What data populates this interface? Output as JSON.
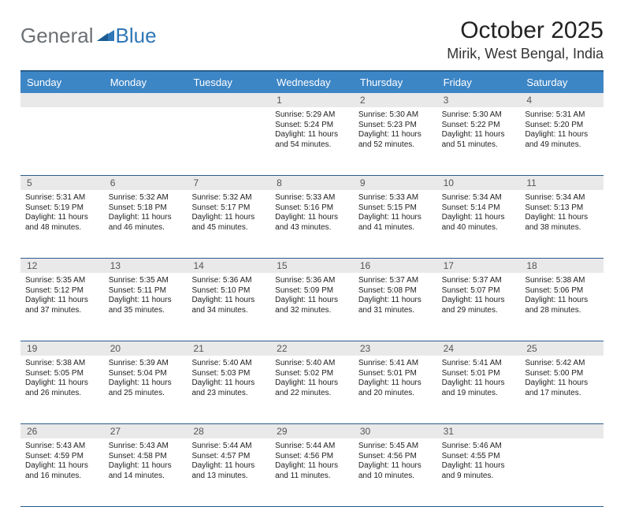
{
  "brand": {
    "general": "General",
    "blue": "Blue"
  },
  "title": "October 2025",
  "location": "Mirik, West Bengal, India",
  "colors": {
    "header_bg": "#3d86c6",
    "header_text": "#ffffff",
    "daynum_bg": "#e9e9e9",
    "daynum_text": "#555555",
    "rule": "#2a5d8a",
    "logo_general": "#6c7074",
    "logo_blue": "#2f77b7",
    "body_text": "#1a1a1a"
  },
  "fonts": {
    "title_pt": 30,
    "location_pt": 18,
    "dayhead_pt": 13,
    "daynum_pt": 12,
    "cell_pt": 10
  },
  "days_of_week": [
    "Sunday",
    "Monday",
    "Tuesday",
    "Wednesday",
    "Thursday",
    "Friday",
    "Saturday"
  ],
  "weeks": [
    [
      {
        "n": "",
        "sunrise": "",
        "sunset": "",
        "daylight": ""
      },
      {
        "n": "",
        "sunrise": "",
        "sunset": "",
        "daylight": ""
      },
      {
        "n": "",
        "sunrise": "",
        "sunset": "",
        "daylight": ""
      },
      {
        "n": "1",
        "sunrise": "Sunrise: 5:29 AM",
        "sunset": "Sunset: 5:24 PM",
        "daylight": "Daylight: 11 hours and 54 minutes."
      },
      {
        "n": "2",
        "sunrise": "Sunrise: 5:30 AM",
        "sunset": "Sunset: 5:23 PM",
        "daylight": "Daylight: 11 hours and 52 minutes."
      },
      {
        "n": "3",
        "sunrise": "Sunrise: 5:30 AM",
        "sunset": "Sunset: 5:22 PM",
        "daylight": "Daylight: 11 hours and 51 minutes."
      },
      {
        "n": "4",
        "sunrise": "Sunrise: 5:31 AM",
        "sunset": "Sunset: 5:20 PM",
        "daylight": "Daylight: 11 hours and 49 minutes."
      }
    ],
    [
      {
        "n": "5",
        "sunrise": "Sunrise: 5:31 AM",
        "sunset": "Sunset: 5:19 PM",
        "daylight": "Daylight: 11 hours and 48 minutes."
      },
      {
        "n": "6",
        "sunrise": "Sunrise: 5:32 AM",
        "sunset": "Sunset: 5:18 PM",
        "daylight": "Daylight: 11 hours and 46 minutes."
      },
      {
        "n": "7",
        "sunrise": "Sunrise: 5:32 AM",
        "sunset": "Sunset: 5:17 PM",
        "daylight": "Daylight: 11 hours and 45 minutes."
      },
      {
        "n": "8",
        "sunrise": "Sunrise: 5:33 AM",
        "sunset": "Sunset: 5:16 PM",
        "daylight": "Daylight: 11 hours and 43 minutes."
      },
      {
        "n": "9",
        "sunrise": "Sunrise: 5:33 AM",
        "sunset": "Sunset: 5:15 PM",
        "daylight": "Daylight: 11 hours and 41 minutes."
      },
      {
        "n": "10",
        "sunrise": "Sunrise: 5:34 AM",
        "sunset": "Sunset: 5:14 PM",
        "daylight": "Daylight: 11 hours and 40 minutes."
      },
      {
        "n": "11",
        "sunrise": "Sunrise: 5:34 AM",
        "sunset": "Sunset: 5:13 PM",
        "daylight": "Daylight: 11 hours and 38 minutes."
      }
    ],
    [
      {
        "n": "12",
        "sunrise": "Sunrise: 5:35 AM",
        "sunset": "Sunset: 5:12 PM",
        "daylight": "Daylight: 11 hours and 37 minutes."
      },
      {
        "n": "13",
        "sunrise": "Sunrise: 5:35 AM",
        "sunset": "Sunset: 5:11 PM",
        "daylight": "Daylight: 11 hours and 35 minutes."
      },
      {
        "n": "14",
        "sunrise": "Sunrise: 5:36 AM",
        "sunset": "Sunset: 5:10 PM",
        "daylight": "Daylight: 11 hours and 34 minutes."
      },
      {
        "n": "15",
        "sunrise": "Sunrise: 5:36 AM",
        "sunset": "Sunset: 5:09 PM",
        "daylight": "Daylight: 11 hours and 32 minutes."
      },
      {
        "n": "16",
        "sunrise": "Sunrise: 5:37 AM",
        "sunset": "Sunset: 5:08 PM",
        "daylight": "Daylight: 11 hours and 31 minutes."
      },
      {
        "n": "17",
        "sunrise": "Sunrise: 5:37 AM",
        "sunset": "Sunset: 5:07 PM",
        "daylight": "Daylight: 11 hours and 29 minutes."
      },
      {
        "n": "18",
        "sunrise": "Sunrise: 5:38 AM",
        "sunset": "Sunset: 5:06 PM",
        "daylight": "Daylight: 11 hours and 28 minutes."
      }
    ],
    [
      {
        "n": "19",
        "sunrise": "Sunrise: 5:38 AM",
        "sunset": "Sunset: 5:05 PM",
        "daylight": "Daylight: 11 hours and 26 minutes."
      },
      {
        "n": "20",
        "sunrise": "Sunrise: 5:39 AM",
        "sunset": "Sunset: 5:04 PM",
        "daylight": "Daylight: 11 hours and 25 minutes."
      },
      {
        "n": "21",
        "sunrise": "Sunrise: 5:40 AM",
        "sunset": "Sunset: 5:03 PM",
        "daylight": "Daylight: 11 hours and 23 minutes."
      },
      {
        "n": "22",
        "sunrise": "Sunrise: 5:40 AM",
        "sunset": "Sunset: 5:02 PM",
        "daylight": "Daylight: 11 hours and 22 minutes."
      },
      {
        "n": "23",
        "sunrise": "Sunrise: 5:41 AM",
        "sunset": "Sunset: 5:01 PM",
        "daylight": "Daylight: 11 hours and 20 minutes."
      },
      {
        "n": "24",
        "sunrise": "Sunrise: 5:41 AM",
        "sunset": "Sunset: 5:01 PM",
        "daylight": "Daylight: 11 hours and 19 minutes."
      },
      {
        "n": "25",
        "sunrise": "Sunrise: 5:42 AM",
        "sunset": "Sunset: 5:00 PM",
        "daylight": "Daylight: 11 hours and 17 minutes."
      }
    ],
    [
      {
        "n": "26",
        "sunrise": "Sunrise: 5:43 AM",
        "sunset": "Sunset: 4:59 PM",
        "daylight": "Daylight: 11 hours and 16 minutes."
      },
      {
        "n": "27",
        "sunrise": "Sunrise: 5:43 AM",
        "sunset": "Sunset: 4:58 PM",
        "daylight": "Daylight: 11 hours and 14 minutes."
      },
      {
        "n": "28",
        "sunrise": "Sunrise: 5:44 AM",
        "sunset": "Sunset: 4:57 PM",
        "daylight": "Daylight: 11 hours and 13 minutes."
      },
      {
        "n": "29",
        "sunrise": "Sunrise: 5:44 AM",
        "sunset": "Sunset: 4:56 PM",
        "daylight": "Daylight: 11 hours and 11 minutes."
      },
      {
        "n": "30",
        "sunrise": "Sunrise: 5:45 AM",
        "sunset": "Sunset: 4:56 PM",
        "daylight": "Daylight: 11 hours and 10 minutes."
      },
      {
        "n": "31",
        "sunrise": "Sunrise: 5:46 AM",
        "sunset": "Sunset: 4:55 PM",
        "daylight": "Daylight: 11 hours and 9 minutes."
      },
      {
        "n": "",
        "sunrise": "",
        "sunset": "",
        "daylight": ""
      }
    ]
  ]
}
